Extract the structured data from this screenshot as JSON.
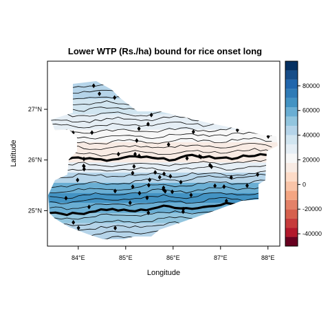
{
  "chart_data": {
    "type": "heatmap",
    "title": "Lower WTP (Rs./ha) bound for rice onset long",
    "xlabel": "Longitude",
    "ylabel": "Latitude",
    "xlim": [
      83.35,
      88.25
    ],
    "ylim": [
      24.3,
      27.95
    ],
    "x_ticks": [
      {
        "value": 84,
        "label": "84°E"
      },
      {
        "value": 85,
        "label": "85°E"
      },
      {
        "value": 86,
        "label": "86°E"
      },
      {
        "value": 87,
        "label": "87°E"
      },
      {
        "value": 88,
        "label": "88°E"
      }
    ],
    "y_ticks": [
      {
        "value": 25,
        "label": "25°N"
      },
      {
        "value": 26,
        "label": "26°N"
      },
      {
        "value": 27,
        "label": "27°N"
      }
    ],
    "colorbar": {
      "range": [
        -50000,
        100000
      ],
      "ticks": [
        {
          "value": 80000,
          "label": "80000"
        },
        {
          "value": 60000,
          "label": "60000"
        },
        {
          "value": 40000,
          "label": "40000"
        },
        {
          "value": 20000,
          "label": "20000"
        },
        {
          "value": 0,
          "label": "0"
        },
        {
          "value": -20000,
          "label": "-20000"
        },
        {
          "value": -40000,
          "label": "-40000"
        }
      ],
      "colors": [
        "#67001f",
        "#b2182b",
        "#c63b3b",
        "#d6604d",
        "#e48168",
        "#f4a582",
        "#f9c4a8",
        "#fddbc7",
        "#f8ebe4",
        "#f7f7f7",
        "#e5eef5",
        "#d1e5f0",
        "#b5d4e9",
        "#92c5de",
        "#6aaed3",
        "#4393c3",
        "#2f7bb6",
        "#2166ac",
        "#174d88",
        "#053061"
      ]
    },
    "bands": [
      {
        "lat": 27.35,
        "value": 42000
      },
      {
        "lat": 27.05,
        "value": 36000
      },
      {
        "lat": 26.75,
        "value": 32000
      },
      {
        "lat": 26.45,
        "value": 22000
      },
      {
        "lat": 26.25,
        "value": 12000
      },
      {
        "lat": 26.05,
        "value": 16000
      },
      {
        "lat": 25.85,
        "value": 26000
      },
      {
        "lat": 25.65,
        "value": 44000
      },
      {
        "lat": 25.45,
        "value": 58000
      },
      {
        "lat": 25.25,
        "value": 66000
      },
      {
        "lat": 25.05,
        "value": 62000
      },
      {
        "lat": 24.85,
        "value": 50000
      },
      {
        "lat": 24.65,
        "value": 40000
      }
    ]
  }
}
